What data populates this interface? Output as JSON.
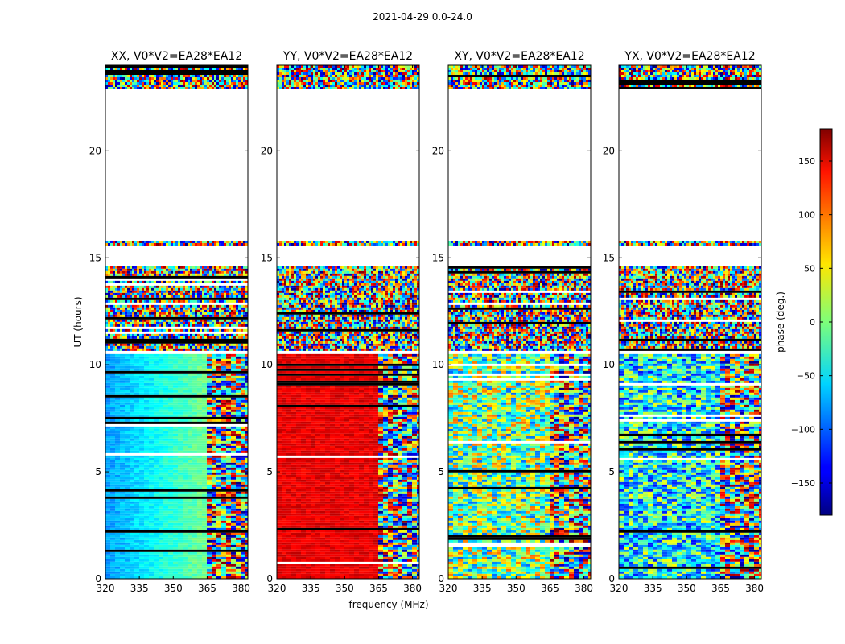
{
  "figure": {
    "suptitle": "2021-04-29 0.0-24.0"
  },
  "chart_data": {
    "type": "heatmap",
    "title": "2021-04-29 0.0-24.0",
    "xlabel": "frequency (MHz)",
    "ylabel": "UT (hours)",
    "xlim": [
      320,
      383
    ],
    "ylim": [
      0,
      24
    ],
    "xticks": [
      320,
      335,
      350,
      365,
      380
    ],
    "yticks": [
      0,
      5,
      10,
      15,
      20
    ],
    "panels": [
      {
        "title": "XX, V0*V2=EA28*EA12",
        "pol": "XX"
      },
      {
        "title": "YY, V0*V2=EA28*EA12",
        "pol": "YY"
      },
      {
        "title": "XY, V0*V2=EA28*EA12",
        "pol": "XY"
      },
      {
        "title": "YX, V0*V2=EA28*EA12",
        "pol": "YX"
      }
    ],
    "data_segments_ut_hours": [
      [
        0,
        10.5
      ],
      [
        10.7,
        14.6
      ],
      [
        15.6,
        15.8
      ],
      [
        22.9,
        24.0
      ]
    ],
    "colorbar": {
      "label": "phase (deg.)",
      "range": [
        -180,
        180
      ],
      "ticks": [
        150,
        100,
        50,
        0,
        -50,
        -100,
        -150
      ],
      "tick_labels": [
        "150",
        "100",
        "50",
        "0",
        "−50",
        "−100",
        "−150"
      ],
      "colormap": "jet"
    },
    "colors": {
      "frame": "#000000",
      "background": "#ffffff",
      "nan": "#000000"
    }
  }
}
